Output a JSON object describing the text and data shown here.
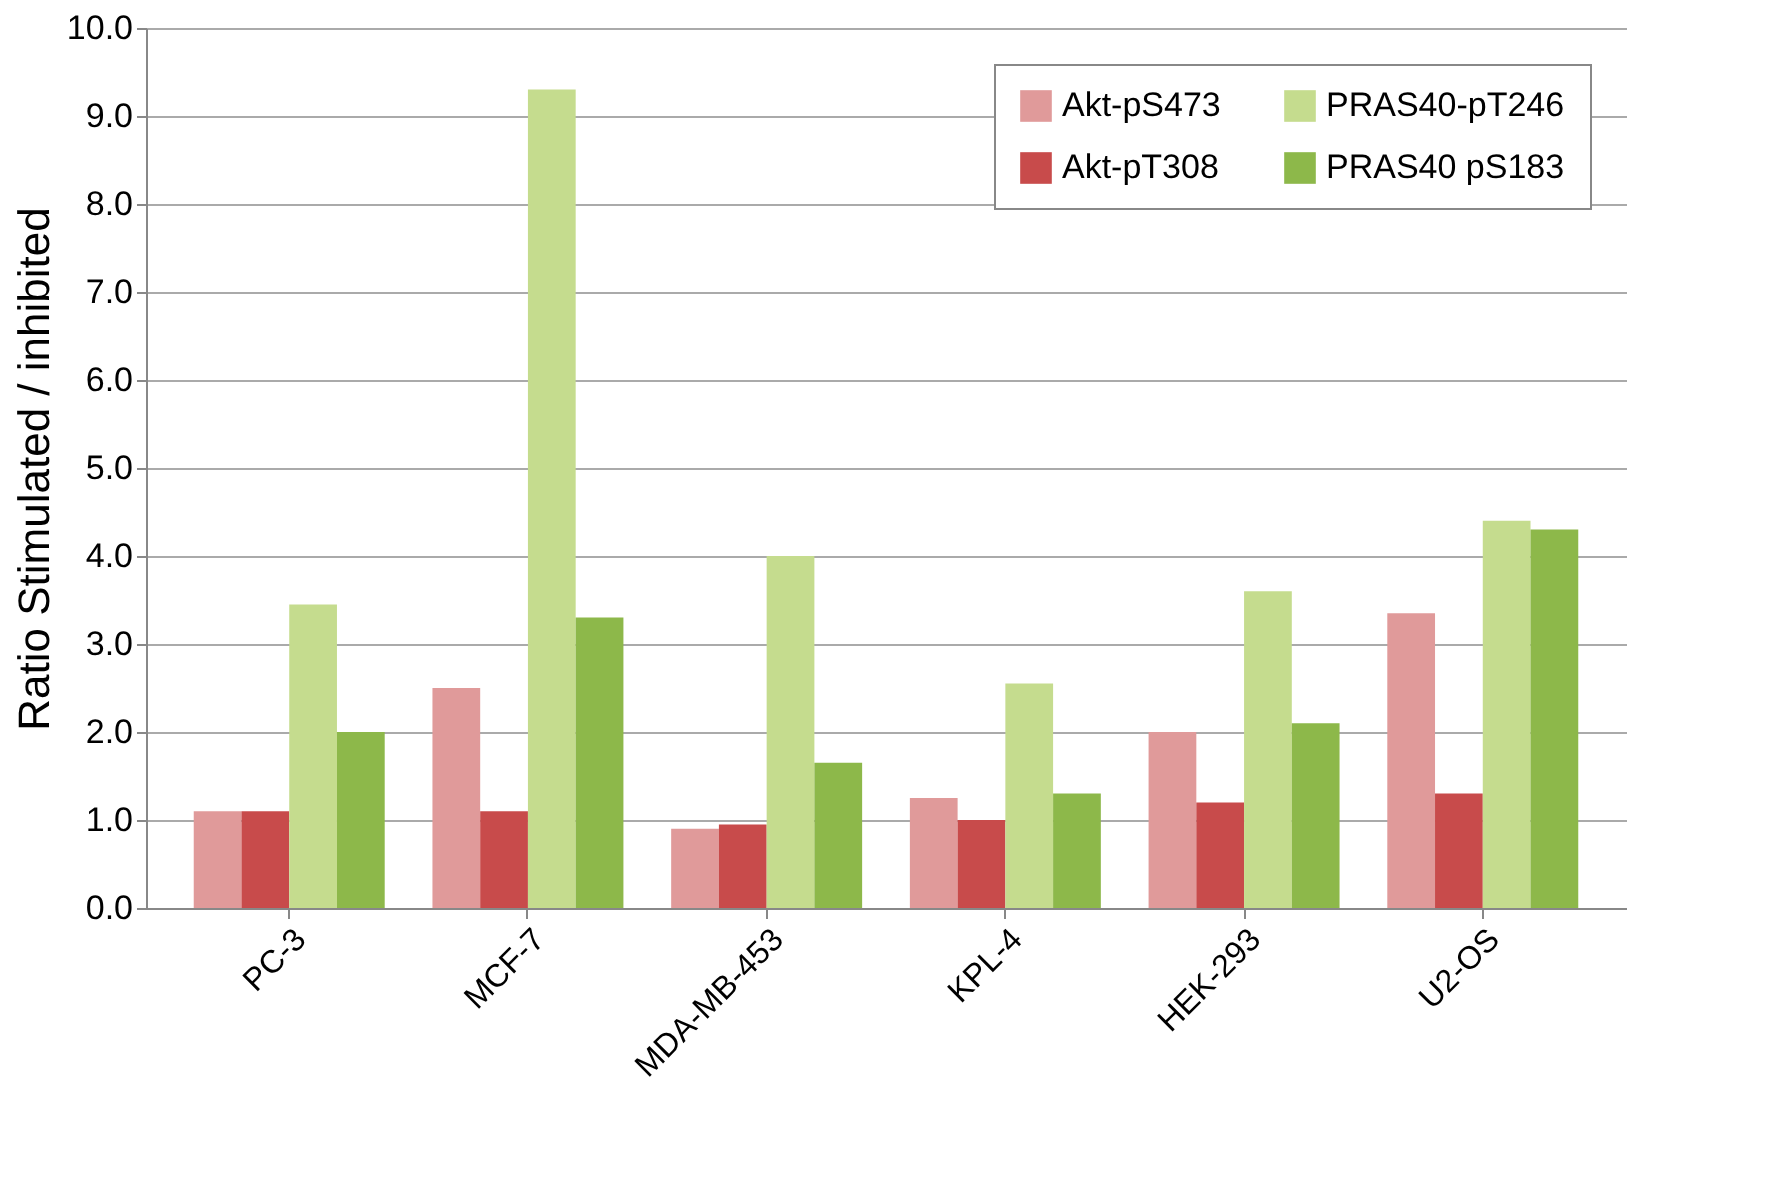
{
  "chart_data": {
    "type": "bar",
    "ylabel": "Ratio Stimulated / inhibited",
    "categories": [
      "PC-3",
      "MCF-7",
      "MDA-MB-453",
      "KPL-4",
      "HEK-293",
      "U2-OS"
    ],
    "series": [
      {
        "name": "Akt-pS473",
        "color": "#e09a9a",
        "values": [
          1.1,
          2.5,
          0.9,
          1.25,
          2.0,
          3.35
        ]
      },
      {
        "name": "Akt-pT308",
        "color": "#c84b4b",
        "values": [
          1.1,
          1.1,
          0.95,
          1.0,
          1.2,
          1.3
        ]
      },
      {
        "name": "PRAS40-pT246",
        "color": "#c5dc8e",
        "values": [
          3.45,
          9.3,
          4.0,
          2.55,
          3.6,
          4.4
        ]
      },
      {
        "name": "PRAS40 pS183",
        "color": "#8db84a",
        "values": [
          2.0,
          3.3,
          1.65,
          1.3,
          2.1,
          4.3
        ]
      }
    ],
    "ylim": [
      0,
      10
    ],
    "yticks": [
      {
        "value": 0,
        "label": "0.0"
      },
      {
        "value": 1,
        "label": "1.0"
      },
      {
        "value": 2,
        "label": "2.0"
      },
      {
        "value": 3,
        "label": "3.0"
      },
      {
        "value": 4,
        "label": "4.0"
      },
      {
        "value": 5,
        "label": "5.0"
      },
      {
        "value": 6,
        "label": "6.0"
      },
      {
        "value": 7,
        "label": "7.0"
      },
      {
        "value": 8,
        "label": "8.0"
      },
      {
        "value": 9,
        "label": "9.0"
      },
      {
        "value": 10,
        "label": "10.0"
      }
    ],
    "grid": "y",
    "legend": "top right"
  }
}
